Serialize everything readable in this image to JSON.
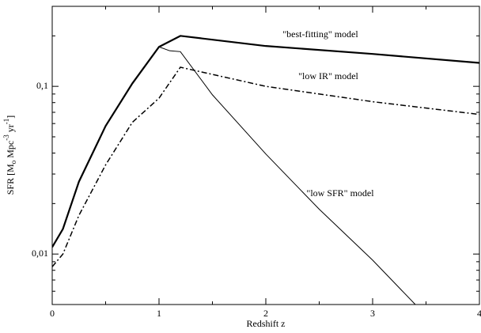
{
  "chart_data": {
    "type": "line",
    "xlabel": "Redshift z",
    "ylabel": [
      "SFR [M",
      "o",
      " Mpc",
      "-3",
      " yr",
      "-1",
      "]"
    ],
    "xlim": [
      0,
      4
    ],
    "xticks": [
      0,
      1,
      2,
      3,
      4
    ],
    "xminor": [
      0.5,
      1.5,
      2.5,
      3.5
    ],
    "ylim": [
      0.005,
      0.3
    ],
    "log_y": true,
    "yticks": [
      {
        "value": 0.01,
        "label": "0,01"
      },
      {
        "value": 0.1,
        "label": "0,1"
      }
    ],
    "yminor": [
      0.006,
      0.007,
      0.008,
      0.009,
      0.02,
      0.03,
      0.04,
      0.05,
      0.06,
      0.07,
      0.08,
      0.09,
      0.2,
      0.3
    ],
    "series": [
      {
        "name": "\"best-fitting\" model",
        "color": "#000000",
        "width": 2.2,
        "dash": "none",
        "x": [
          0,
          0.1,
          0.25,
          0.5,
          0.75,
          1,
          1.2,
          2,
          3,
          4
        ],
        "values": [
          0.011,
          0.0141,
          0.027,
          0.058,
          0.104,
          0.172,
          0.2,
          0.174,
          0.156,
          0.138
        ]
      },
      {
        "name": "\"low IR\" model",
        "color": "#000000",
        "width": 1.5,
        "dash": "7 3 2 3",
        "x": [
          0,
          0.1,
          0.25,
          0.5,
          0.75,
          1,
          1.2,
          2,
          3,
          4
        ],
        "values": [
          0.0084,
          0.01,
          0.017,
          0.034,
          0.061,
          0.085,
          0.13,
          0.1,
          0.081,
          0.068
        ]
      },
      {
        "name": "\"low SFR\" model",
        "color": "#000000",
        "width": 1,
        "dash": "none",
        "x": [
          0,
          0.1,
          0.25,
          0.5,
          0.75,
          1,
          1.1,
          1.2,
          1.5,
          2,
          2.5,
          3,
          3.4
        ],
        "values": [
          0.011,
          0.0141,
          0.027,
          0.058,
          0.104,
          0.172,
          0.163,
          0.161,
          0.089,
          0.0395,
          0.0185,
          0.0092,
          0.005
        ]
      }
    ]
  }
}
